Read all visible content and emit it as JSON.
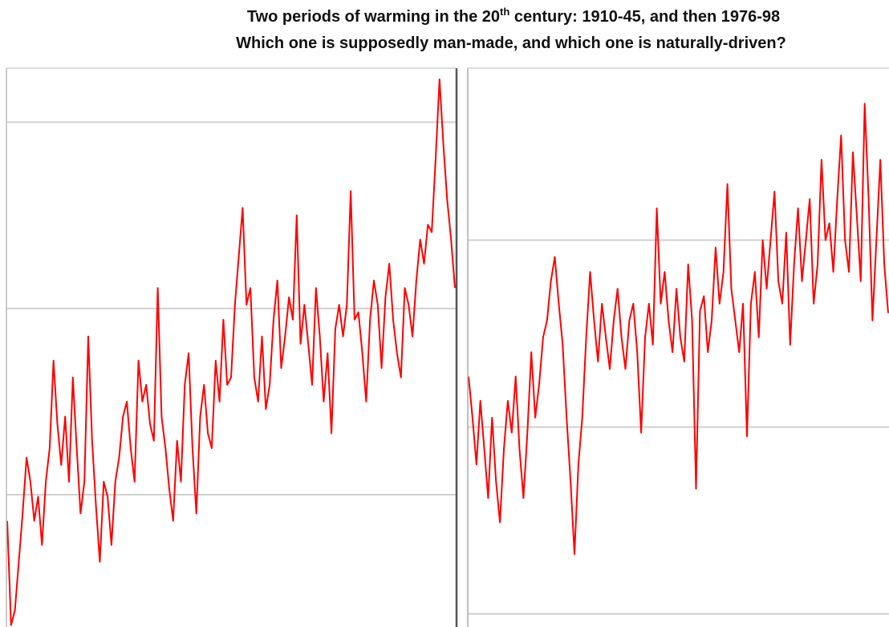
{
  "title": [
    "Two periods of warming in the 20",
    "th",
    " century: 1910-45, and then 1976-98"
  ],
  "subtitle": "Which one is supposedly man-made, and which one is naturally-driven?",
  "chart_data": [
    {
      "type": "line",
      "color": "#ff0000",
      "grid": true,
      "ylim": [
        -0.71,
        2.29
      ],
      "yticks": [
        0,
        1,
        2
      ],
      "values": [
        -0.14,
        -0.7,
        -0.62,
        -0.36,
        -0.1,
        0.2,
        0.07,
        -0.14,
        -0.01,
        -0.27,
        0.07,
        0.25,
        0.72,
        0.38,
        0.16,
        0.42,
        0.07,
        0.63,
        0.25,
        -0.1,
        0.07,
        0.85,
        0.29,
        -0.06,
        -0.36,
        0.07,
        -0.01,
        -0.27,
        0.07,
        0.2,
        0.42,
        0.5,
        0.25,
        0.07,
        0.72,
        0.5,
        0.59,
        0.38,
        0.29,
        1.11,
        0.42,
        0.25,
        0.03,
        -0.14,
        0.29,
        0.07,
        0.59,
        0.76,
        0.25,
        -0.1,
        0.42,
        0.59,
        0.33,
        0.25,
        0.72,
        0.5,
        0.94,
        0.59,
        0.63,
        1.02,
        1.28,
        1.54,
        1.02,
        1.11,
        0.63,
        0.5,
        0.85,
        0.46,
        0.59,
        0.94,
        1.15,
        0.68,
        0.85,
        1.06,
        0.94,
        1.5,
        0.81,
        1.02,
        0.81,
        0.59,
        1.11,
        0.85,
        0.5,
        0.76,
        0.33,
        0.89,
        1.02,
        0.85,
        1.02,
        1.63,
        0.94,
        0.98,
        0.76,
        0.5,
        0.94,
        1.15,
        1.02,
        0.68,
        1.06,
        1.24,
        0.94,
        0.76,
        0.63,
        1.11,
        1.02,
        0.85,
        1.15,
        1.37,
        1.24,
        1.45,
        1.41,
        1.8,
        2.23,
        1.88,
        1.58,
        1.37,
        1.11
      ]
    },
    {
      "type": "line",
      "color": "#ff0000",
      "grid": true,
      "ylim": [
        -0.07,
        2.92
      ],
      "yticks": [
        0,
        1,
        2
      ],
      "values": [
        1.27,
        1.05,
        0.8,
        1.14,
        0.88,
        0.62,
        1.05,
        0.71,
        0.49,
        0.88,
        1.14,
        0.97,
        1.27,
        0.88,
        0.62,
        0.97,
        1.4,
        1.05,
        1.23,
        1.48,
        1.57,
        1.78,
        1.91,
        1.66,
        1.44,
        1.05,
        0.71,
        0.32,
        0.8,
        1.05,
        1.48,
        1.83,
        1.57,
        1.35,
        1.66,
        1.48,
        1.31,
        1.57,
        1.74,
        1.48,
        1.31,
        1.57,
        1.66,
        1.4,
        0.97,
        1.48,
        1.66,
        1.44,
        2.17,
        1.66,
        1.83,
        1.57,
        1.4,
        1.74,
        1.48,
        1.35,
        1.87,
        1.57,
        0.67,
        1.62,
        1.7,
        1.4,
        1.57,
        1.96,
        1.66,
        1.83,
        2.3,
        1.74,
        1.57,
        1.4,
        1.66,
        0.95,
        1.66,
        1.83,
        1.48,
        2.0,
        1.74,
        2.0,
        2.26,
        1.78,
        1.66,
        2.04,
        1.44,
        1.87,
        2.17,
        1.78,
        2.0,
        2.22,
        1.66,
        1.87,
        2.43,
        2.0,
        2.09,
        1.83,
        2.22,
        2.56,
        2.0,
        1.83,
        2.47,
        2.13,
        1.78,
        2.73,
        2.22,
        1.57,
        2.0,
        2.43,
        1.87,
        1.61
      ]
    }
  ]
}
